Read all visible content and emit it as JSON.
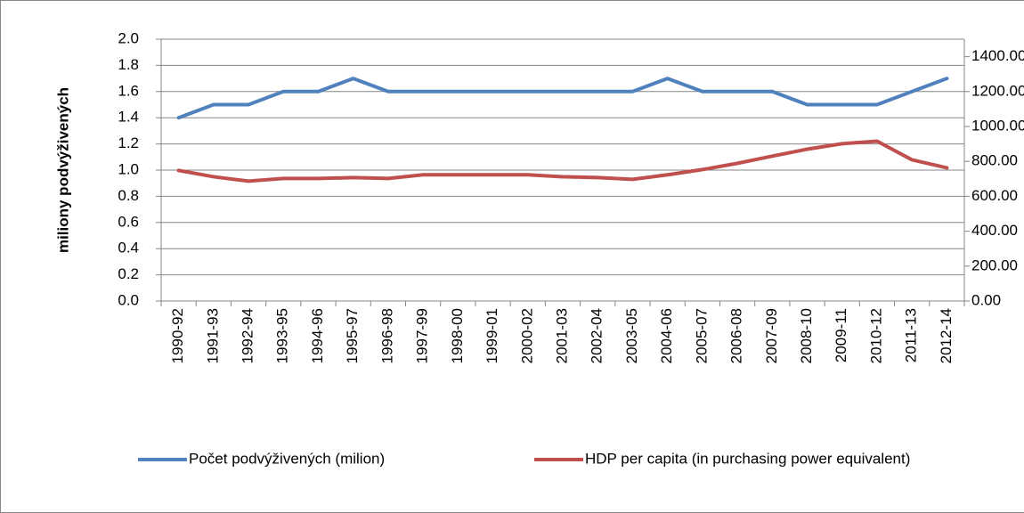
{
  "chart_data": {
    "type": "line",
    "y_label": "miliony podvýživených",
    "categories": [
      "1990-92",
      "1991-93",
      "1992-94",
      "1993-95",
      "1994-96",
      "1995-97",
      "1996-98",
      "1997-99",
      "1998-00",
      "1999-01",
      "2000-02",
      "2001-03",
      "2002-04",
      "2003-05",
      "2004-06",
      "2005-07",
      "2006-08",
      "2007-09",
      "2008-10",
      "2009-11",
      "2010-12",
      "2011-13",
      "2012-14"
    ],
    "series": [
      {
        "name": "Počet podvýživených (milion)",
        "color": "#4f81bd",
        "values": [
          1.4,
          1.5,
          1.5,
          1.6,
          1.6,
          1.7,
          1.6,
          1.6,
          1.6,
          1.6,
          1.6,
          1.6,
          1.6,
          1.6,
          1.7,
          1.6,
          1.6,
          1.6,
          1.5,
          1.5,
          1.5,
          1.6,
          1.7
        ]
      },
      {
        "name": "HDP per capita (in purchasing power equivalent)",
        "color": "#c0504d",
        "axis": "y2",
        "values": [
          748,
          712,
          687,
          702,
          702,
          707,
          702,
          723,
          723,
          723,
          723,
          712,
          707,
          697,
          723,
          753,
          789,
          830,
          870,
          901,
          916,
          809,
          763
        ]
      }
    ],
    "ylim": [
      0,
      2.0
    ],
    "yticks": [
      {
        "value": 0,
        "label": "0.0"
      },
      {
        "value": 0.2,
        "label": "0.2"
      },
      {
        "value": 0.4,
        "label": "0.4"
      },
      {
        "value": 0.6,
        "label": "0.6"
      },
      {
        "value": 0.8,
        "label": "0.8"
      },
      {
        "value": 1.0,
        "label": "1.0"
      },
      {
        "value": 1.2,
        "label": "1.2"
      },
      {
        "value": 1.4,
        "label": "1.4"
      },
      {
        "value": 1.6,
        "label": "1.6"
      },
      {
        "value": 1.8,
        "label": "1.8"
      },
      {
        "value": 2.0,
        "label": "2.0"
      }
    ],
    "y2lim": [
      0,
      1500
    ],
    "y2ticks": [
      {
        "value": 0,
        "label": "0.00"
      },
      {
        "value": 200,
        "label": "200.00"
      },
      {
        "value": 400,
        "label": "400.00"
      },
      {
        "value": 600,
        "label": "600.00"
      },
      {
        "value": 800,
        "label": "800.00"
      },
      {
        "value": 1000,
        "label": "1000.00"
      },
      {
        "value": 1200,
        "label": "1200.00"
      },
      {
        "value": 1400,
        "label": "1400.00"
      }
    ],
    "grid": true,
    "legend": "bottom"
  }
}
